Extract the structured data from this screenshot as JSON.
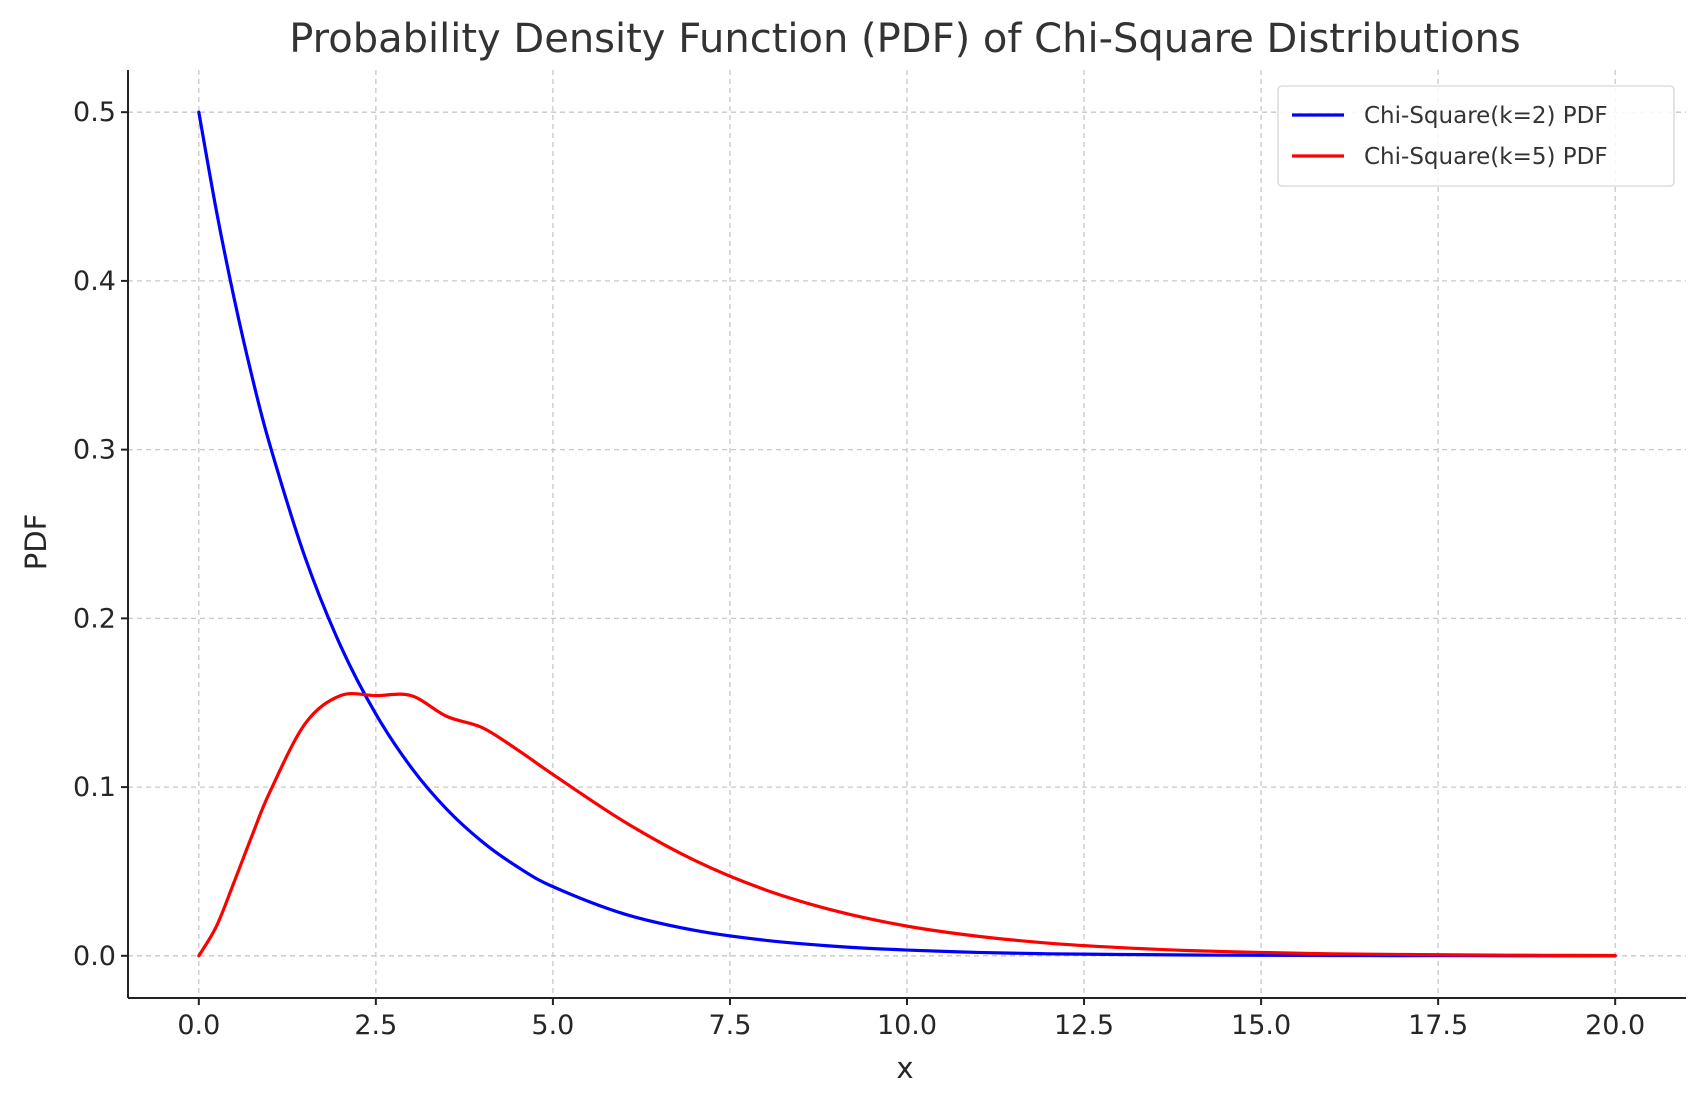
{
  "chart_data": {
    "type": "line",
    "title": "Probability Density Function (PDF) of Chi-Square Distributions",
    "xlabel": "x",
    "ylabel": "PDF",
    "xlim": [
      -1,
      21
    ],
    "ylim": [
      -0.025,
      0.525
    ],
    "xticks": [
      0,
      2.5,
      5,
      7.5,
      10,
      12.5,
      15,
      17.5,
      20
    ],
    "xtick_labels": [
      "0.0",
      "2.5",
      "5.0",
      "7.5",
      "10.0",
      "12.5",
      "15.0",
      "17.5",
      "20.0"
    ],
    "yticks": [
      0,
      0.1,
      0.2,
      0.3,
      0.4,
      0.5
    ],
    "ytick_labels": [
      "0.0",
      "0.1",
      "0.2",
      "0.3",
      "0.4",
      "0.5"
    ],
    "grid": true,
    "legend_position": "top-right",
    "x": [
      0,
      0.25,
      0.5,
      0.75,
      1,
      1.5,
      2,
      2.5,
      3,
      3.5,
      4,
      4.5,
      5,
      6,
      7,
      8,
      9,
      10,
      11,
      12,
      13,
      14,
      15,
      16,
      17,
      18,
      19,
      20
    ],
    "series": [
      {
        "name": "Chi-Square(k=2) PDF",
        "color": "#0000ff",
        "values": [
          0.5,
          0.4412,
          0.3894,
          0.3436,
          0.3033,
          0.2362,
          0.1839,
          0.1433,
          0.1116,
          0.0869,
          0.0677,
          0.0527,
          0.041,
          0.0249,
          0.0151,
          0.0092,
          0.0056,
          0.0034,
          0.002,
          0.0012,
          0.0008,
          0.0005,
          0.0003,
          0.0002,
          0.0001,
          0.0001,
          0.0,
          0.0
        ]
      },
      {
        "name": "Chi-Square(k=5) PDF",
        "color": "#ff0000",
        "values": [
          0.0,
          0.0176,
          0.0439,
          0.0711,
          0.0968,
          0.1375,
          0.1542,
          0.1542,
          0.1542,
          0.1419,
          0.1353,
          0.1221,
          0.1075,
          0.0797,
          0.0566,
          0.0391,
          0.0265,
          0.0176,
          0.0116,
          0.0075,
          0.0049,
          0.0031,
          0.002,
          0.0012,
          0.0008,
          0.0005,
          0.0003,
          0.0002
        ]
      }
    ]
  }
}
